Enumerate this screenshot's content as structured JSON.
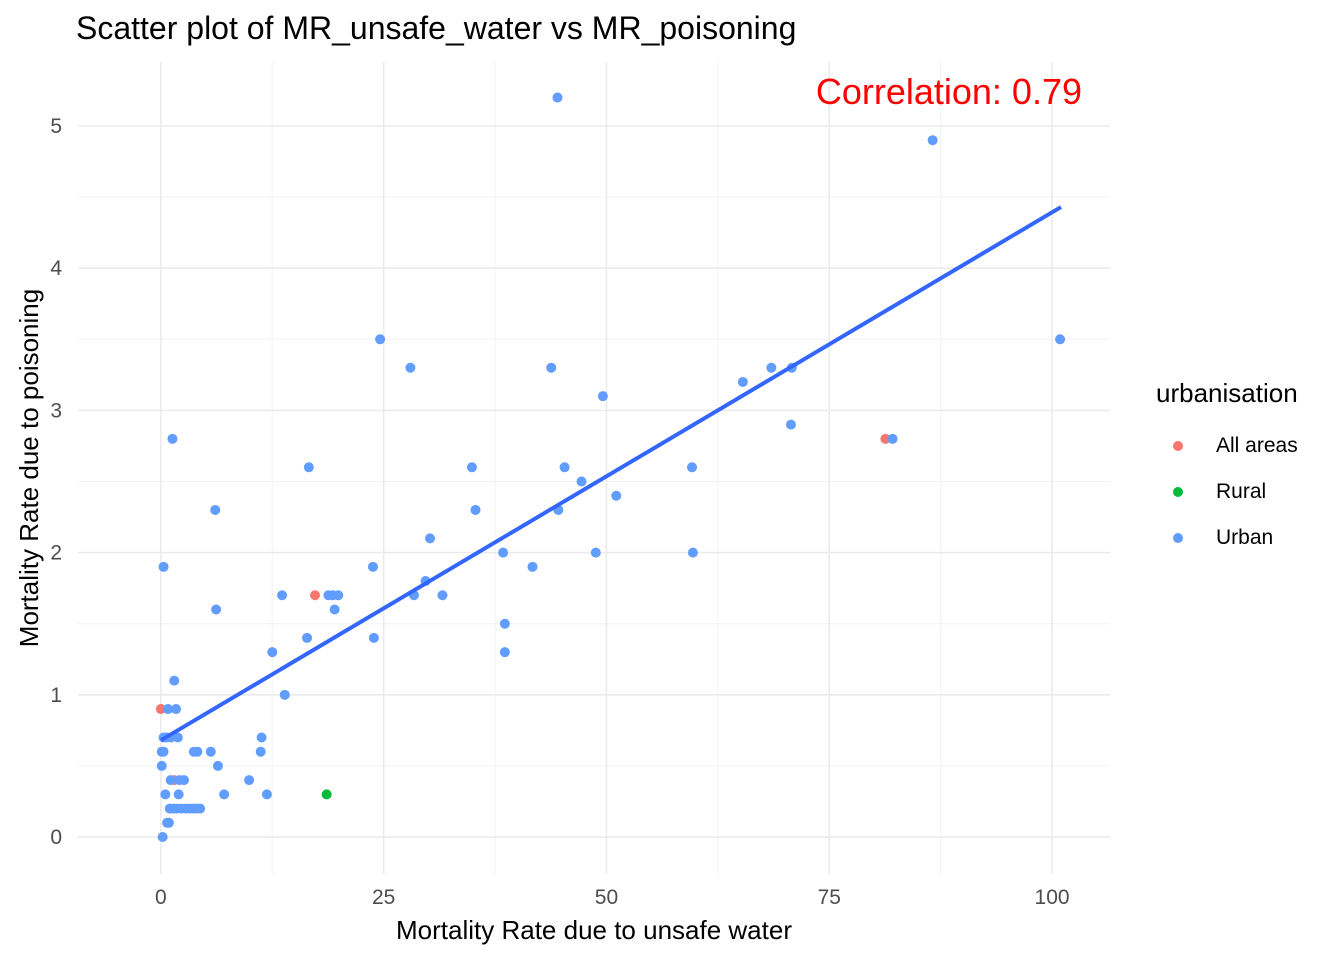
{
  "chart_data": {
    "type": "scatter",
    "title": "Scatter plot of MR_unsafe_water vs MR_poisoning",
    "xlabel": "Mortality Rate due to unsafe water",
    "ylabel": "Mortality Rate due to poisoning",
    "xlim": [
      -9.3,
      106.5
    ],
    "ylim": [
      -0.26,
      5.45
    ],
    "x_ticks": [
      0,
      25,
      50,
      75,
      100
    ],
    "y_ticks": [
      0,
      1,
      2,
      3,
      4,
      5
    ],
    "x_tick_labels": [
      "0",
      "25",
      "50",
      "75",
      "100"
    ],
    "y_tick_labels": [
      "0",
      "1",
      "2",
      "3",
      "4",
      "5"
    ],
    "grid": true,
    "annotation": {
      "text": "Correlation:  0.79",
      "color": "#ff0000",
      "position": "top-right"
    },
    "legend": {
      "title": "urbanisation",
      "placement": "right",
      "entries": [
        {
          "label": "All areas",
          "color": "#f8766d"
        },
        {
          "label": "Rural",
          "color": "#00ba38"
        },
        {
          "label": "Urban",
          "color": "#619cff"
        }
      ]
    },
    "trend_line": {
      "color": "#3366ff",
      "x": [
        0,
        101
      ],
      "y": [
        0.68,
        4.43
      ]
    },
    "series": [
      {
        "name": "All areas",
        "color": "#f8766d",
        "points": [
          [
            0,
            0.9
          ],
          [
            1.5,
            0.4
          ],
          [
            17.3,
            1.7
          ],
          [
            81.3,
            2.8
          ]
        ]
      },
      {
        "name": "Rural",
        "color": "#00ba38",
        "points": [
          [
            18.6,
            0.3
          ]
        ]
      },
      {
        "name": "Urban",
        "color": "#619cff",
        "points": [
          [
            0.1,
            0.6
          ],
          [
            0.1,
            0.5
          ],
          [
            0.2,
            0.0
          ],
          [
            0.3,
            0.6
          ],
          [
            0.3,
            0.7
          ],
          [
            0.3,
            1.9
          ],
          [
            0.5,
            0.3
          ],
          [
            0.6,
            0.7
          ],
          [
            0.7,
            0.1
          ],
          [
            0.8,
            0.9
          ],
          [
            0.9,
            0.1
          ],
          [
            1.0,
            0.2
          ],
          [
            1.1,
            0.4
          ],
          [
            1.1,
            0.7
          ],
          [
            1.3,
            2.8
          ],
          [
            1.4,
            0.2
          ],
          [
            1.5,
            1.1
          ],
          [
            1.7,
            0.9
          ],
          [
            1.8,
            0.2
          ],
          [
            1.9,
            0.7
          ],
          [
            2.0,
            0.3
          ],
          [
            2.1,
            0.4
          ],
          [
            2.3,
            0.2
          ],
          [
            2.6,
            0.4
          ],
          [
            2.8,
            0.2
          ],
          [
            3.2,
            0.2
          ],
          [
            3.6,
            0.2
          ],
          [
            3.7,
            0.6
          ],
          [
            4.0,
            0.2
          ],
          [
            4.1,
            0.6
          ],
          [
            4.4,
            0.2
          ],
          [
            5.6,
            0.6
          ],
          [
            6.1,
            2.3
          ],
          [
            6.2,
            1.6
          ],
          [
            6.4,
            0.5
          ],
          [
            7.1,
            0.3
          ],
          [
            9.9,
            0.4
          ],
          [
            11.2,
            0.6
          ],
          [
            11.3,
            0.7
          ],
          [
            11.9,
            0.3
          ],
          [
            12.5,
            1.3
          ],
          [
            13.6,
            1.7
          ],
          [
            13.9,
            1.0
          ],
          [
            16.4,
            1.4
          ],
          [
            16.6,
            2.6
          ],
          [
            18.8,
            1.7
          ],
          [
            19.3,
            1.7
          ],
          [
            19.5,
            1.6
          ],
          [
            19.9,
            1.7
          ],
          [
            23.8,
            1.9
          ],
          [
            23.9,
            1.4
          ],
          [
            24.6,
            3.5
          ],
          [
            28.0,
            3.3
          ],
          [
            28.4,
            1.7
          ],
          [
            29.7,
            1.8
          ],
          [
            30.2,
            2.1
          ],
          [
            31.6,
            1.7
          ],
          [
            34.9,
            2.6
          ],
          [
            35.3,
            2.3
          ],
          [
            38.4,
            2.0
          ],
          [
            38.6,
            1.5
          ],
          [
            38.6,
            1.3
          ],
          [
            41.7,
            1.9
          ],
          [
            43.8,
            3.3
          ],
          [
            44.5,
            5.2
          ],
          [
            44.6,
            2.3
          ],
          [
            45.3,
            2.6
          ],
          [
            47.2,
            2.5
          ],
          [
            48.8,
            2.0
          ],
          [
            49.6,
            3.1
          ],
          [
            51.1,
            2.4
          ],
          [
            59.6,
            2.6
          ],
          [
            59.7,
            2.0
          ],
          [
            65.3,
            3.2
          ],
          [
            68.5,
            3.3
          ],
          [
            70.7,
            2.9
          ],
          [
            70.8,
            3.3
          ],
          [
            82.1,
            2.8
          ],
          [
            86.6,
            4.9
          ],
          [
            100.9,
            3.5
          ]
        ]
      }
    ]
  }
}
